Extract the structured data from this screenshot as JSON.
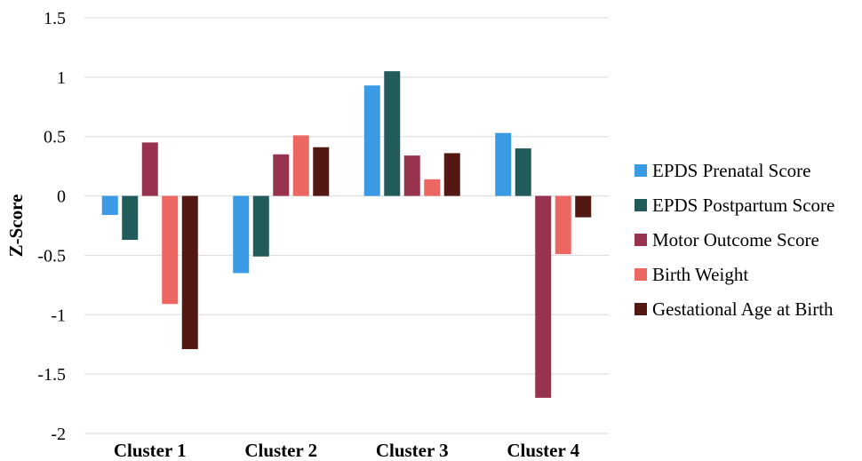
{
  "chart_data": {
    "type": "bar",
    "title": "",
    "xlabel": "",
    "ylabel": "Z-Score",
    "ylim": [
      -2,
      1.5
    ],
    "yticks": [
      1.5,
      1,
      0.5,
      0,
      -0.5,
      -1,
      -1.5,
      -2
    ],
    "grid": true,
    "legend_position": "right",
    "categories": [
      "Cluster 1",
      "Cluster 2",
      "Cluster 3",
      "Cluster 4"
    ],
    "series": [
      {
        "name": "EPDS Prenatal Score",
        "color": "#3A9AE3",
        "values": [
          -0.16,
          -0.65,
          0.93,
          0.53
        ]
      },
      {
        "name": "EPDS Postpartum Score",
        "color": "#215B5A",
        "values": [
          -0.37,
          -0.51,
          1.05,
          0.4
        ]
      },
      {
        "name": "Motor Outcome Score",
        "color": "#98334F",
        "values": [
          0.45,
          0.35,
          0.34,
          -1.7
        ]
      },
      {
        "name": "Birth Weight",
        "color": "#EC6762",
        "values": [
          -0.91,
          0.51,
          0.14,
          -0.49
        ]
      },
      {
        "name": "Gestational Age at Birth",
        "color": "#521811",
        "values": [
          -1.29,
          0.41,
          0.36,
          -0.18
        ]
      }
    ]
  }
}
